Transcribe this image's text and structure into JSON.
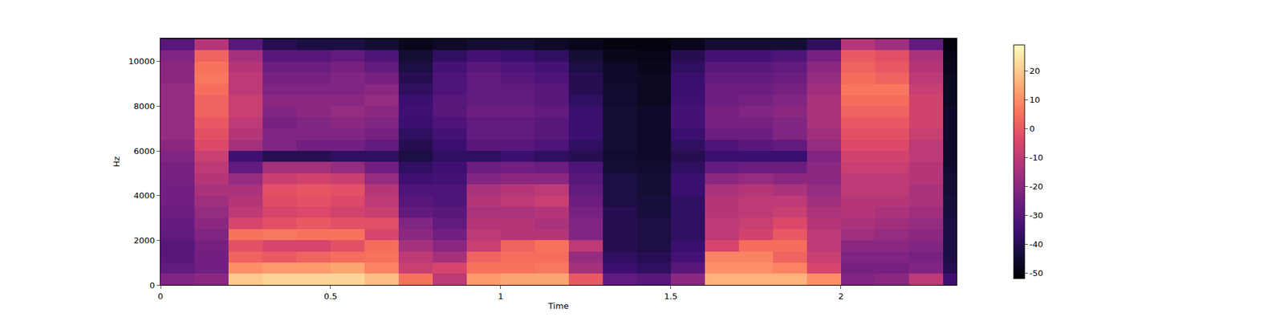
{
  "chart_data": {
    "type": "heatmap",
    "x_label": "Time",
    "y_label": "Hz",
    "color": "magma",
    "x": [
      0.05,
      0.15,
      0.25,
      0.35,
      0.45,
      0.55,
      0.65,
      0.75,
      0.85,
      0.95,
      1.05,
      1.15,
      1.25,
      1.35,
      1.45,
      1.55,
      1.65,
      1.75,
      1.85,
      1.95,
      2.05,
      2.15,
      2.25,
      2.35
    ],
    "y": [
      250,
      750,
      1250,
      1750,
      2250,
      2750,
      3250,
      3750,
      4250,
      4750,
      5250,
      5750,
      6250,
      6750,
      7250,
      7750,
      8250,
      8750,
      9250,
      9750,
      10250,
      10750
    ],
    "cells": [
      [
        -22,
        -28,
        -30,
        -30,
        -28,
        -27,
        -26,
        -25,
        -25,
        -24,
        -24,
        -22,
        -20,
        -18,
        -18,
        -18,
        -18,
        -18,
        -20,
        -20,
        -22,
        -30
      ],
      [
        -20,
        -25,
        -25,
        -24,
        -22,
        -20,
        -18,
        -16,
        -14,
        -12,
        -10,
        -8,
        -4,
        -2,
        0,
        2,
        2,
        4,
        6,
        5,
        2,
        -12
      ],
      [
        20,
        10,
        2,
        -2,
        5,
        -5,
        -10,
        -12,
        -14,
        -18,
        -28,
        -35,
        -15,
        -12,
        -10,
        -8,
        -8,
        -10,
        -10,
        -12,
        -15,
        -30
      ],
      [
        22,
        12,
        0,
        -5,
        6,
        -2,
        -5,
        -3,
        -2,
        -8,
        -15,
        -40,
        -22,
        -22,
        -24,
        -22,
        -20,
        -22,
        -24,
        -26,
        -30,
        -40
      ],
      [
        22,
        12,
        2,
        -5,
        5,
        0,
        -4,
        -2,
        -1,
        -6,
        -15,
        -40,
        -25,
        -22,
        -22,
        -20,
        -20,
        -22,
        -24,
        -26,
        -30,
        -42
      ],
      [
        22,
        14,
        4,
        -2,
        5,
        -2,
        -6,
        -4,
        -2,
        -8,
        -18,
        -38,
        -25,
        -22,
        -20,
        -18,
        -20,
        -22,
        -22,
        -24,
        -28,
        -42
      ],
      [
        18,
        8,
        5,
        4,
        -5,
        -2,
        -8,
        -10,
        -12,
        -18,
        -25,
        -38,
        -28,
        -24,
        -22,
        -20,
        -18,
        -20,
        -24,
        -28,
        -32,
        -44
      ],
      [
        5,
        -8,
        -10,
        -15,
        -20,
        -22,
        -28,
        -30,
        -32,
        -35,
        -38,
        -42,
        -40,
        -38,
        -36,
        -35,
        -36,
        -38,
        -40,
        -42,
        -44,
        -48
      ],
      [
        -10,
        -5,
        -15,
        -20,
        -25,
        -28,
        -30,
        -32,
        -32,
        -34,
        -35,
        -38,
        -36,
        -34,
        -32,
        -30,
        -30,
        -32,
        -32,
        -34,
        -38,
        -46
      ],
      [
        12,
        5,
        2,
        -8,
        -10,
        -12,
        -14,
        -12,
        -14,
        -22,
        -26,
        -38,
        -30,
        -28,
        -28,
        -26,
        -28,
        -28,
        -28,
        -30,
        -34,
        -44
      ],
      [
        14,
        5,
        4,
        2,
        -12,
        -12,
        -14,
        -10,
        -12,
        -20,
        -25,
        -36,
        -30,
        -28,
        -28,
        -26,
        -28,
        -28,
        -30,
        -32,
        -36,
        -44
      ],
      [
        14,
        6,
        4,
        5,
        -12,
        -14,
        -12,
        -8,
        -10,
        -20,
        -26,
        -38,
        -32,
        -30,
        -30,
        -28,
        -30,
        -30,
        -32,
        -34,
        -38,
        -46
      ],
      [
        0,
        -15,
        -18,
        -10,
        -22,
        -22,
        -24,
        -26,
        -28,
        -30,
        -32,
        -40,
        -38,
        -36,
        -36,
        -36,
        -38,
        -40,
        -40,
        -42,
        -44,
        -48
      ],
      [
        -28,
        -36,
        -38,
        -40,
        -40,
        -40,
        -40,
        -42,
        -42,
        -42,
        -44,
        -45,
        -44,
        -44,
        -44,
        -44,
        -45,
        -45,
        -46,
        -46,
        -48,
        -50
      ],
      [
        -30,
        -38,
        -40,
        -42,
        -42,
        -42,
        -43,
        -43,
        -44,
        -44,
        -45,
        -46,
        -46,
        -46,
        -46,
        -46,
        -47,
        -47,
        -47,
        -48,
        -49,
        -50
      ],
      [
        -20,
        -30,
        -34,
        -36,
        -38,
        -38,
        -38,
        -38,
        -36,
        -36,
        -38,
        -40,
        -38,
        -36,
        -34,
        -34,
        -35,
        -36,
        -36,
        -38,
        -40,
        -48
      ],
      [
        16,
        10,
        8,
        -5,
        -10,
        -10,
        -12,
        -12,
        -14,
        -20,
        -28,
        -36,
        -32,
        -26,
        -24,
        -24,
        -26,
        -26,
        -28,
        -30,
        -34,
        -44
      ],
      [
        16,
        10,
        8,
        4,
        -6,
        -8,
        -10,
        -10,
        -12,
        -18,
        -26,
        -36,
        -30,
        -26,
        -24,
        -22,
        -24,
        -26,
        -28,
        -30,
        -34,
        -44
      ],
      [
        16,
        8,
        2,
        4,
        0,
        -4,
        -8,
        -10,
        -14,
        -20,
        -26,
        -36,
        -28,
        -22,
        -22,
        -20,
        -22,
        -24,
        -26,
        -28,
        -32,
        -44
      ],
      [
        10,
        -5,
        -8,
        -10,
        -10,
        -12,
        -14,
        -16,
        -18,
        -20,
        -20,
        -22,
        -18,
        -16,
        -14,
        -14,
        -14,
        -16,
        -18,
        -20,
        -24,
        -38
      ],
      [
        -22,
        -24,
        -22,
        -20,
        -16,
        -14,
        -12,
        -12,
        -10,
        -10,
        -8,
        -6,
        -4,
        -2,
        0,
        2,
        4,
        6,
        4,
        2,
        0,
        -12
      ],
      [
        -20,
        -24,
        -22,
        -20,
        -18,
        -16,
        -14,
        -12,
        -10,
        -10,
        -8,
        -6,
        -4,
        -2,
        0,
        2,
        4,
        6,
        2,
        0,
        -2,
        -16
      ],
      [
        -10,
        -22,
        -24,
        -22,
        -20,
        -18,
        -16,
        -14,
        -14,
        -12,
        -12,
        -10,
        -10,
        -8,
        -6,
        -6,
        -6,
        -8,
        -10,
        -12,
        -14,
        -28
      ],
      [
        -35,
        -40,
        -42,
        -42,
        -42,
        -42,
        -43,
        -43,
        -44,
        -44,
        -45,
        -46,
        -46,
        -46,
        -46,
        -46,
        -47,
        -47,
        -47,
        -48,
        -49,
        -50
      ]
    ],
    "xlim": [
      0,
      2.34
    ],
    "xticks": [
      0,
      0.5,
      1,
      1.5,
      2
    ],
    "ylim": [
      0,
      11025
    ],
    "yticks": [
      0,
      2000,
      4000,
      6000,
      8000,
      10000
    ],
    "colorbar_range": [
      -52,
      29
    ],
    "colorbar_ticks": [
      -50,
      -40,
      -30,
      -20,
      -10,
      0,
      10,
      20
    ]
  }
}
